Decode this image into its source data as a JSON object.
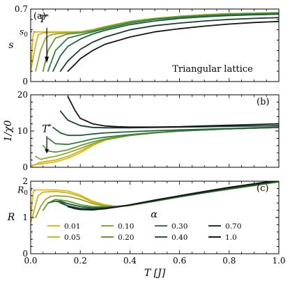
{
  "chart_data": [
    {
      "type": "line",
      "panel_label": "(a)",
      "ylabel": "s",
      "xlim": [
        0.0,
        1.0
      ],
      "ylim": [
        0.0,
        0.7
      ],
      "yticks": [
        "0.7",
        "0",
        "s0"
      ],
      "annotation": "Triangular lattice",
      "arrow_label": "T*",
      "ref_level_label": "s0",
      "ref_level": 0.48,
      "series": [
        {
          "name": "0.01",
          "x": [
            0.0,
            0.01,
            0.02,
            0.05,
            0.1,
            0.15,
            0.2,
            0.25,
            0.3,
            0.4,
            0.5,
            0.6,
            0.7,
            0.8,
            0.9,
            1.0
          ],
          "y": [
            0.1,
            0.46,
            0.48,
            0.48,
            0.48,
            0.48,
            0.48,
            0.5,
            0.53,
            0.58,
            0.61,
            0.63,
            0.645,
            0.655,
            0.66,
            0.665
          ]
        },
        {
          "name": "0.05",
          "x": [
            0.0,
            0.02,
            0.03,
            0.05,
            0.1,
            0.15,
            0.2,
            0.25,
            0.3,
            0.4,
            0.5,
            0.6,
            0.7,
            0.8,
            0.9,
            1.0
          ],
          "y": [
            0.1,
            0.35,
            0.45,
            0.47,
            0.475,
            0.478,
            0.48,
            0.5,
            0.53,
            0.58,
            0.61,
            0.63,
            0.645,
            0.655,
            0.66,
            0.665
          ]
        },
        {
          "name": "0.10",
          "x": [
            0.02,
            0.04,
            0.06,
            0.08,
            0.1,
            0.15,
            0.2,
            0.25,
            0.3,
            0.4,
            0.5,
            0.6,
            0.7,
            0.8,
            0.9,
            1.0
          ],
          "y": [
            0.1,
            0.3,
            0.42,
            0.45,
            0.46,
            0.47,
            0.48,
            0.5,
            0.53,
            0.58,
            0.61,
            0.63,
            0.645,
            0.655,
            0.66,
            0.665
          ]
        },
        {
          "name": "0.20",
          "x": [
            0.05,
            0.07,
            0.1,
            0.15,
            0.2,
            0.25,
            0.3,
            0.4,
            0.5,
            0.6,
            0.7,
            0.8,
            0.9,
            1.0
          ],
          "y": [
            0.1,
            0.3,
            0.42,
            0.46,
            0.47,
            0.49,
            0.52,
            0.575,
            0.605,
            0.625,
            0.64,
            0.65,
            0.655,
            0.66
          ]
        },
        {
          "name": "0.30",
          "x": [
            0.07,
            0.1,
            0.15,
            0.2,
            0.25,
            0.3,
            0.4,
            0.5,
            0.6,
            0.7,
            0.8,
            0.9,
            1.0
          ],
          "y": [
            0.1,
            0.3,
            0.42,
            0.45,
            0.48,
            0.51,
            0.565,
            0.6,
            0.62,
            0.635,
            0.645,
            0.652,
            0.658
          ]
        },
        {
          "name": "0.40",
          "x": [
            0.09,
            0.12,
            0.15,
            0.2,
            0.25,
            0.3,
            0.4,
            0.5,
            0.6,
            0.7,
            0.8,
            0.9,
            1.0
          ],
          "y": [
            0.1,
            0.25,
            0.34,
            0.41,
            0.46,
            0.495,
            0.55,
            0.585,
            0.61,
            0.625,
            0.637,
            0.645,
            0.65
          ]
        },
        {
          "name": "0.70",
          "x": [
            0.12,
            0.15,
            0.2,
            0.25,
            0.3,
            0.4,
            0.5,
            0.6,
            0.7,
            0.8,
            0.9,
            1.0
          ],
          "y": [
            0.1,
            0.2,
            0.31,
            0.38,
            0.43,
            0.5,
            0.54,
            0.565,
            0.585,
            0.6,
            0.61,
            0.618
          ]
        },
        {
          "name": "1.0",
          "x": [
            0.15,
            0.18,
            0.2,
            0.25,
            0.3,
            0.4,
            0.5,
            0.6,
            0.7,
            0.8,
            0.9,
            1.0
          ],
          "y": [
            0.1,
            0.17,
            0.22,
            0.3,
            0.36,
            0.43,
            0.48,
            0.51,
            0.535,
            0.555,
            0.57,
            0.58
          ]
        }
      ]
    },
    {
      "type": "line",
      "panel_label": "(b)",
      "ylabel": "1/χ0",
      "xlim": [
        0.0,
        1.0
      ],
      "ylim": [
        0,
        20
      ],
      "yticks": [
        "0",
        "10",
        "20"
      ],
      "arrow_label": "T*",
      "series": [
        {
          "name": "0.01",
          "x": [
            0.0,
            0.01,
            0.02,
            0.05,
            0.1,
            0.15,
            0.2,
            0.25,
            0.3,
            0.4,
            0.5,
            0.6,
            0.7,
            0.8,
            0.9,
            1.0
          ],
          "y": [
            0.0,
            0.5,
            0.8,
            1.0,
            1.5,
            2.5,
            4.0,
            6.0,
            7.5,
            8.8,
            9.5,
            10.0,
            10.3,
            10.6,
            10.8,
            11.0
          ]
        },
        {
          "name": "0.05",
          "x": [
            0.0,
            0.02,
            0.03,
            0.05,
            0.1,
            0.15,
            0.2,
            0.25,
            0.3,
            0.4,
            0.5,
            0.6,
            0.7,
            0.8,
            0.9,
            1.0
          ],
          "y": [
            0.5,
            0.7,
            1.2,
            1.5,
            2.0,
            3.0,
            4.5,
            6.2,
            7.5,
            8.8,
            9.5,
            10.0,
            10.3,
            10.6,
            10.8,
            11.0
          ]
        },
        {
          "name": "0.10",
          "x": [
            0.02,
            0.04,
            0.06,
            0.08,
            0.1,
            0.15,
            0.2,
            0.25,
            0.3,
            0.4,
            0.5,
            0.6,
            0.7,
            0.8,
            0.9,
            1.0
          ],
          "y": [
            3.0,
            2.2,
            2.5,
            2.8,
            3.0,
            4.0,
            5.2,
            6.5,
            7.6,
            8.8,
            9.5,
            10.0,
            10.3,
            10.6,
            10.8,
            11.0
          ]
        },
        {
          "name": "0.20",
          "x": [
            0.05,
            0.07,
            0.1,
            0.15,
            0.2,
            0.25,
            0.3,
            0.4,
            0.5,
            0.6,
            0.7,
            0.8,
            0.9,
            1.0
          ],
          "y": [
            6.0,
            4.5,
            4.2,
            4.8,
            6.0,
            7.0,
            7.8,
            8.8,
            9.5,
            10.0,
            10.3,
            10.6,
            10.8,
            11.0
          ]
        },
        {
          "name": "0.30",
          "x": [
            0.07,
            0.1,
            0.15,
            0.2,
            0.25,
            0.3,
            0.4,
            0.5,
            0.6,
            0.7,
            0.8,
            0.9,
            1.0
          ],
          "y": [
            8.0,
            6.5,
            6.3,
            7.0,
            7.8,
            8.3,
            9.0,
            9.6,
            10.0,
            10.3,
            10.6,
            10.8,
            11.0
          ]
        },
        {
          "name": "0.40",
          "x": [
            0.09,
            0.12,
            0.15,
            0.2,
            0.25,
            0.3,
            0.4,
            0.5,
            0.6,
            0.7,
            0.8,
            0.9,
            1.0
          ],
          "y": [
            11.0,
            9.5,
            8.8,
            8.8,
            9.2,
            9.5,
            9.8,
            10.1,
            10.3,
            10.5,
            10.7,
            10.9,
            11.1
          ]
        },
        {
          "name": "0.70",
          "x": [
            0.12,
            0.15,
            0.2,
            0.25,
            0.3,
            0.4,
            0.5,
            0.6,
            0.7,
            0.8,
            0.9,
            1.0
          ],
          "y": [
            15.5,
            13.0,
            11.5,
            11.0,
            10.9,
            10.9,
            11.0,
            11.1,
            11.2,
            11.3,
            11.4,
            11.5
          ]
        },
        {
          "name": "1.0",
          "x": [
            0.15,
            0.18,
            0.2,
            0.25,
            0.3,
            0.35,
            0.4,
            0.5,
            0.6,
            0.7,
            0.8,
            0.9,
            1.0
          ],
          "y": [
            19.5,
            15.5,
            13.5,
            12.0,
            11.4,
            11.2,
            11.1,
            11.1,
            11.2,
            11.4,
            11.6,
            11.8,
            12.0
          ]
        }
      ]
    },
    {
      "type": "line",
      "panel_label": "(c)",
      "ylabel": "R",
      "xlabel": "T [J]",
      "xlim": [
        0.0,
        1.0
      ],
      "ylim": [
        0,
        2
      ],
      "xticks": [
        "0.0",
        "0.2",
        "0.4",
        "0.6",
        "0.8",
        "1.0"
      ],
      "yticks": [
        "0",
        "1",
        "2"
      ],
      "ref_level_label": "R0",
      "ref_level": 1.76,
      "legend_title": "α",
      "legend_position": "lower-center",
      "series": [
        {
          "name": "0.01",
          "x": [
            0.0,
            0.01,
            0.02,
            0.05,
            0.1,
            0.15,
            0.2,
            0.25,
            0.3,
            0.35,
            0.4,
            0.5,
            0.6,
            0.7,
            0.8,
            0.9,
            1.0
          ],
          "y": [
            1.0,
            1.7,
            1.76,
            1.76,
            1.76,
            1.73,
            1.62,
            1.45,
            1.35,
            1.3,
            1.33,
            1.45,
            1.57,
            1.68,
            1.78,
            1.88,
            1.98
          ]
        },
        {
          "name": "0.05",
          "x": [
            0.0,
            0.02,
            0.03,
            0.05,
            0.1,
            0.15,
            0.2,
            0.25,
            0.3,
            0.35,
            0.4,
            0.5,
            0.6,
            0.7,
            0.8,
            0.9,
            1.0
          ],
          "y": [
            0.85,
            1.35,
            1.6,
            1.7,
            1.72,
            1.68,
            1.58,
            1.42,
            1.33,
            1.3,
            1.33,
            1.45,
            1.57,
            1.68,
            1.78,
            1.88,
            1.98
          ]
        },
        {
          "name": "0.10",
          "x": [
            0.02,
            0.04,
            0.06,
            0.08,
            0.1,
            0.15,
            0.2,
            0.25,
            0.3,
            0.35,
            0.4,
            0.5,
            0.6,
            0.7,
            0.8,
            0.9,
            1.0
          ],
          "y": [
            1.0,
            1.3,
            1.5,
            1.58,
            1.6,
            1.58,
            1.5,
            1.38,
            1.32,
            1.3,
            1.33,
            1.45,
            1.57,
            1.68,
            1.78,
            1.88,
            1.98
          ]
        },
        {
          "name": "0.20",
          "x": [
            0.05,
            0.07,
            0.1,
            0.15,
            0.2,
            0.25,
            0.3,
            0.35,
            0.4,
            0.5,
            0.6,
            0.7,
            0.8,
            0.9,
            1.0
          ],
          "y": [
            1.2,
            1.4,
            1.5,
            1.45,
            1.35,
            1.3,
            1.3,
            1.31,
            1.34,
            1.45,
            1.57,
            1.68,
            1.78,
            1.88,
            1.98
          ]
        },
        {
          "name": "0.30",
          "x": [
            0.07,
            0.1,
            0.12,
            0.15,
            0.2,
            0.25,
            0.3,
            0.35,
            0.4,
            0.5,
            0.6,
            0.7,
            0.8,
            0.9,
            1.0
          ],
          "y": [
            1.4,
            1.45,
            1.42,
            1.38,
            1.3,
            1.27,
            1.28,
            1.3,
            1.34,
            1.45,
            1.57,
            1.68,
            1.79,
            1.89,
            1.99
          ]
        },
        {
          "name": "0.40",
          "x": [
            0.09,
            0.12,
            0.15,
            0.2,
            0.25,
            0.3,
            0.35,
            0.4,
            0.5,
            0.6,
            0.7,
            0.8,
            0.9,
            1.0
          ],
          "y": [
            1.45,
            1.45,
            1.38,
            1.3,
            1.26,
            1.27,
            1.3,
            1.34,
            1.46,
            1.58,
            1.69,
            1.8,
            1.9,
            2.0
          ]
        },
        {
          "name": "0.70",
          "x": [
            0.12,
            0.15,
            0.2,
            0.25,
            0.3,
            0.35,
            0.4,
            0.5,
            0.6,
            0.7,
            0.8,
            0.9,
            1.0
          ],
          "y": [
            1.4,
            1.32,
            1.25,
            1.23,
            1.25,
            1.29,
            1.34,
            1.47,
            1.59,
            1.7,
            1.81,
            1.91,
            2.01
          ]
        },
        {
          "name": "1.0",
          "x": [
            0.15,
            0.18,
            0.2,
            0.25,
            0.3,
            0.35,
            0.4,
            0.5,
            0.6,
            0.7,
            0.8,
            0.9,
            1.0
          ],
          "y": [
            1.3,
            1.24,
            1.22,
            1.21,
            1.24,
            1.29,
            1.35,
            1.48,
            1.6,
            1.72,
            1.83,
            1.93,
            2.03
          ]
        }
      ]
    }
  ],
  "colors": [
    "#e8b817",
    "#c9b41c",
    "#93a92a",
    "#5f9a36",
    "#347f40",
    "#1f5f3c",
    "#1b3d2c",
    "#161616"
  ]
}
